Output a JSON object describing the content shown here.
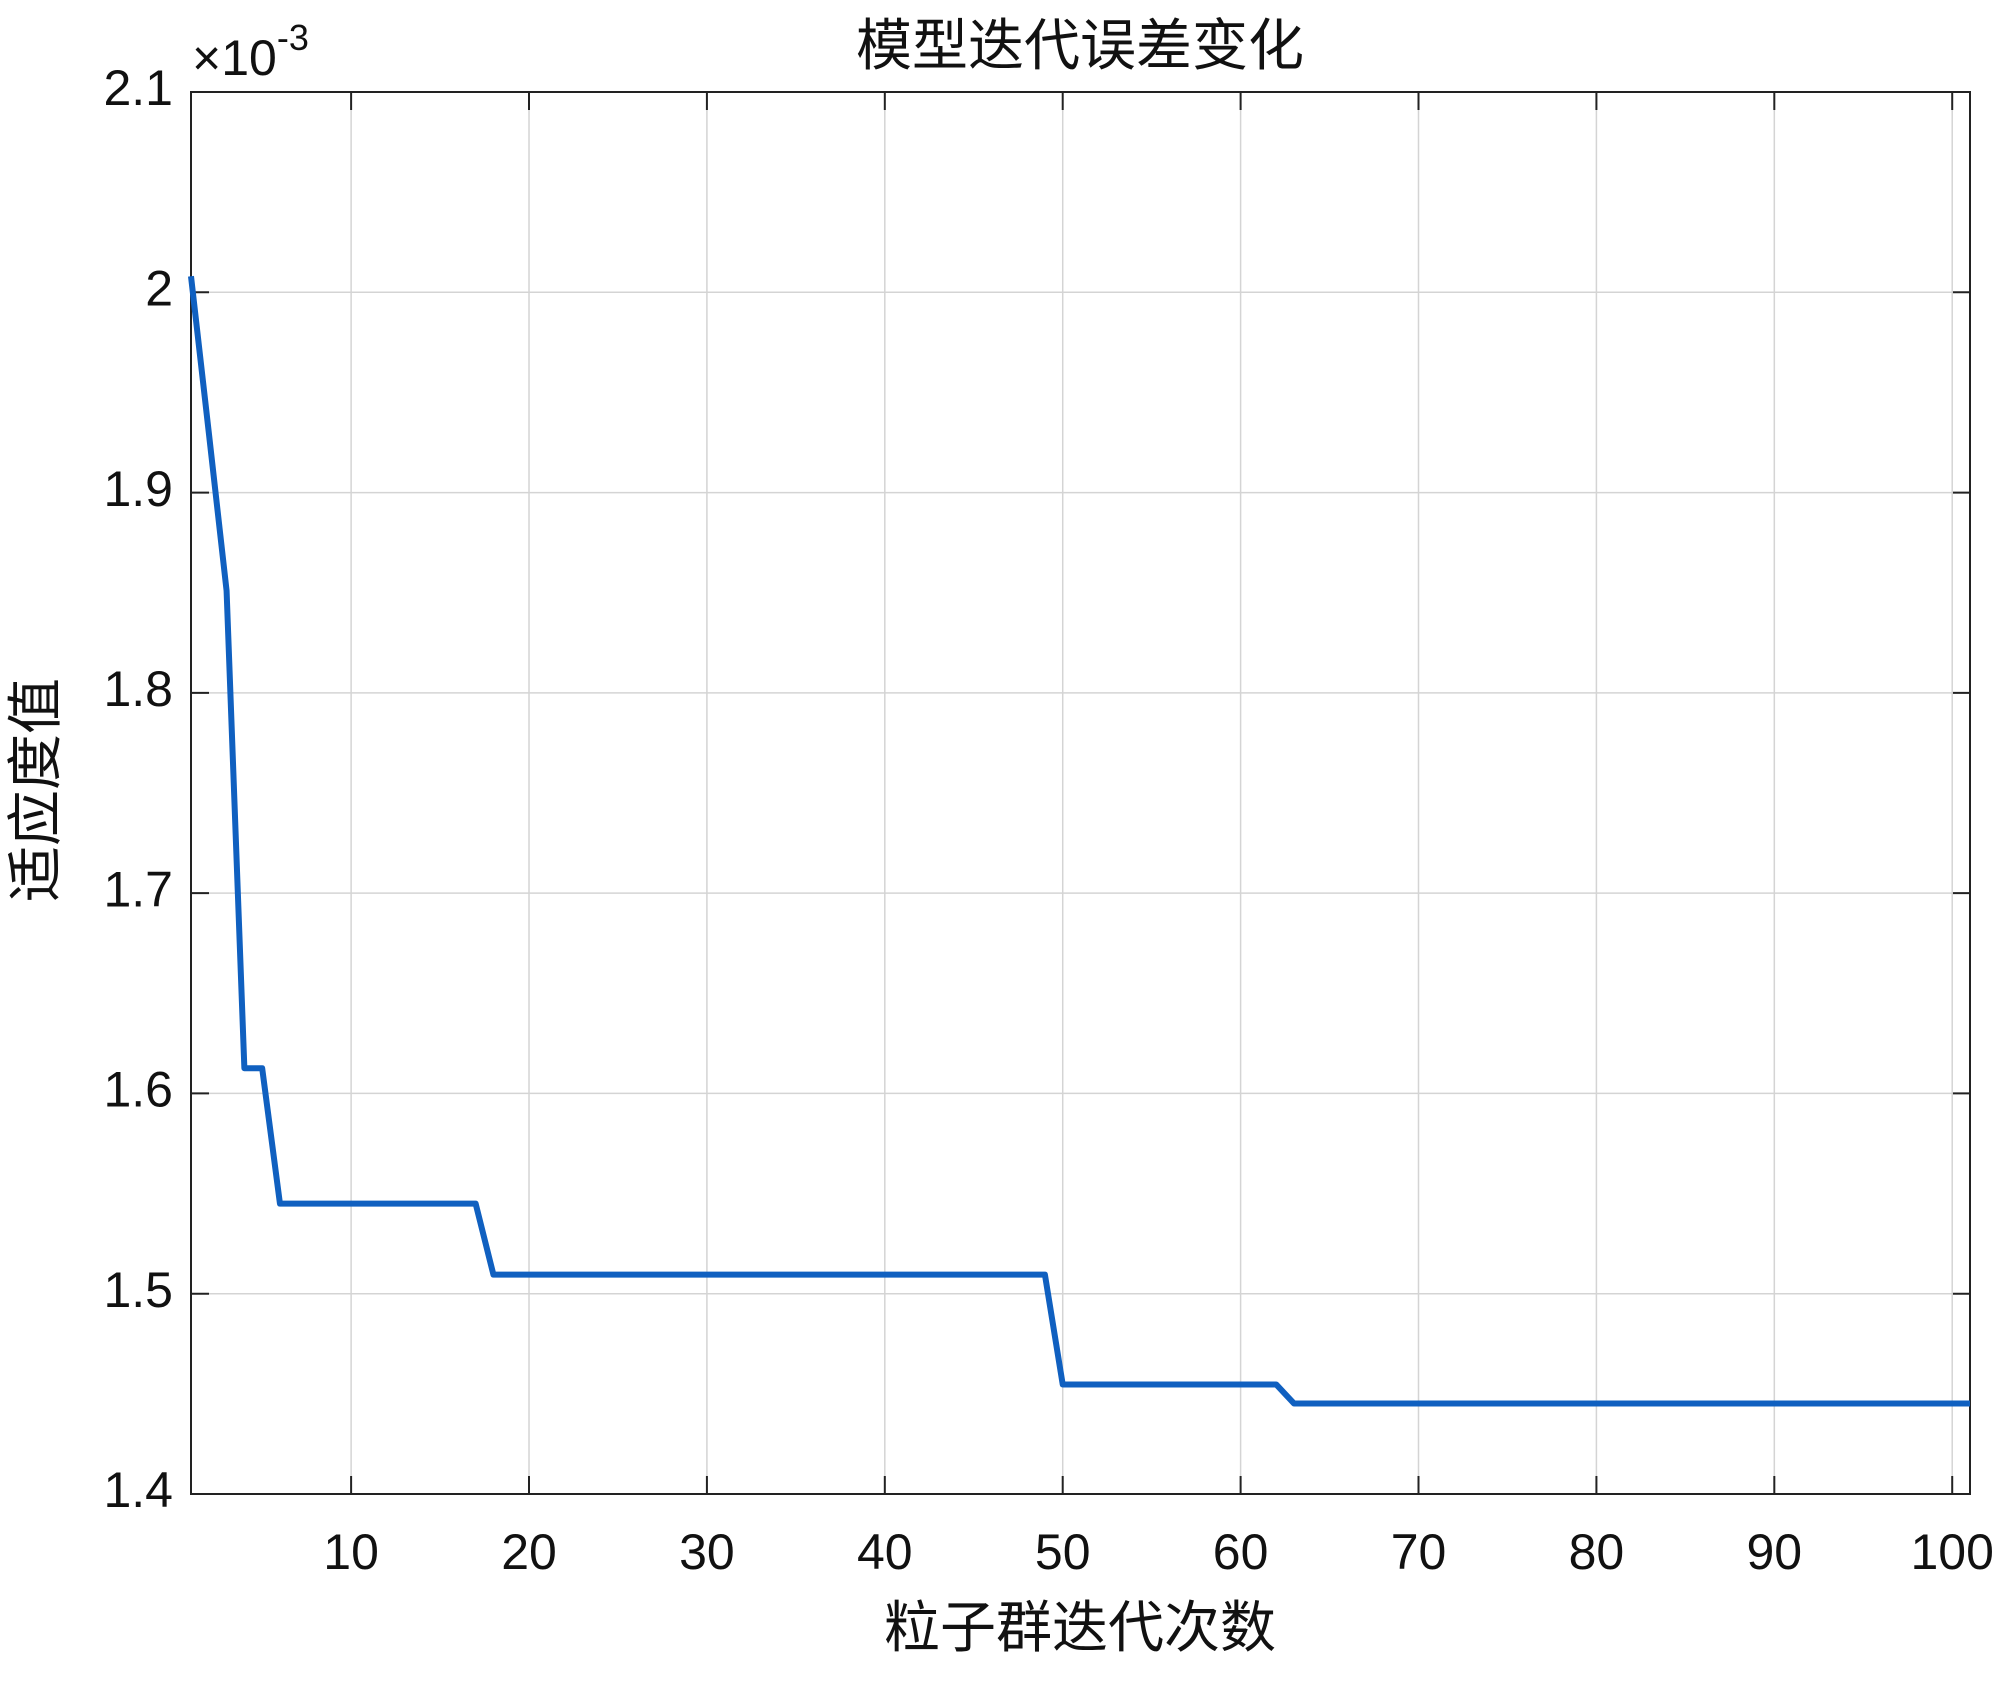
{
  "chart_data": {
    "type": "line",
    "title": "模型迭代误差变化",
    "x_label": "粒子群迭代次数",
    "y_label": "适应度值",
    "y_multiplier": {
      "base": "×10",
      "exponent": "-3"
    },
    "x": [
      1,
      2,
      3,
      4,
      5,
      6,
      7,
      8,
      9,
      10,
      11,
      12,
      13,
      14,
      15,
      16,
      17,
      18,
      19,
      20,
      21,
      22,
      23,
      24,
      25,
      26,
      27,
      28,
      29,
      30,
      31,
      32,
      33,
      34,
      35,
      36,
      37,
      38,
      39,
      40,
      41,
      42,
      43,
      44,
      45,
      46,
      47,
      48,
      49,
      50,
      51,
      52,
      53,
      54,
      55,
      56,
      57,
      58,
      59,
      60,
      61,
      62,
      63,
      64,
      65,
      66,
      67,
      68,
      69,
      70,
      71,
      72,
      73,
      74,
      75,
      76,
      77,
      78,
      79,
      80,
      81,
      82,
      83,
      84,
      85,
      86,
      87,
      88,
      89,
      90,
      91,
      92,
      93,
      94,
      95,
      96,
      97,
      98,
      99,
      100,
      101
    ],
    "series": [
      {
        "name": "适应度值",
        "color": "#1060c0",
        "values": [
          2.008,
          1.93,
          1.851,
          1.6126,
          1.6126,
          1.545,
          1.545,
          1.545,
          1.545,
          1.545,
          1.545,
          1.545,
          1.545,
          1.545,
          1.545,
          1.545,
          1.545,
          1.5095,
          1.5095,
          1.5095,
          1.5095,
          1.5095,
          1.5095,
          1.5095,
          1.5095,
          1.5095,
          1.5095,
          1.5095,
          1.5095,
          1.5095,
          1.5095,
          1.5095,
          1.5095,
          1.5095,
          1.5095,
          1.5095,
          1.5095,
          1.5095,
          1.5095,
          1.5095,
          1.5095,
          1.5095,
          1.5095,
          1.5095,
          1.5095,
          1.5095,
          1.5095,
          1.5095,
          1.5095,
          1.4547,
          1.4547,
          1.4547,
          1.4547,
          1.4547,
          1.4547,
          1.4547,
          1.4547,
          1.4547,
          1.4547,
          1.4547,
          1.4547,
          1.4547,
          1.4452,
          1.4452,
          1.4452,
          1.4452,
          1.4452,
          1.4452,
          1.4452,
          1.4452,
          1.4452,
          1.4452,
          1.4452,
          1.4452,
          1.4452,
          1.4452,
          1.4452,
          1.4452,
          1.4452,
          1.4452,
          1.4452,
          1.4452,
          1.4452,
          1.4452,
          1.4452,
          1.4452,
          1.4452,
          1.4452,
          1.4452,
          1.4452,
          1.4452,
          1.4452,
          1.4452,
          1.4452,
          1.4452,
          1.4452,
          1.4452,
          1.4452,
          1.4452,
          1.4452,
          1.4452
        ]
      }
    ],
    "xlim": [
      1,
      101
    ],
    "xticks": [
      10,
      20,
      30,
      40,
      50,
      60,
      70,
      80,
      90,
      100
    ],
    "ylim": [
      1.4,
      2.1
    ],
    "yticks": [
      1.4,
      1.5,
      1.6,
      1.7,
      1.8,
      1.9,
      2,
      2.1
    ],
    "grid": true
  }
}
